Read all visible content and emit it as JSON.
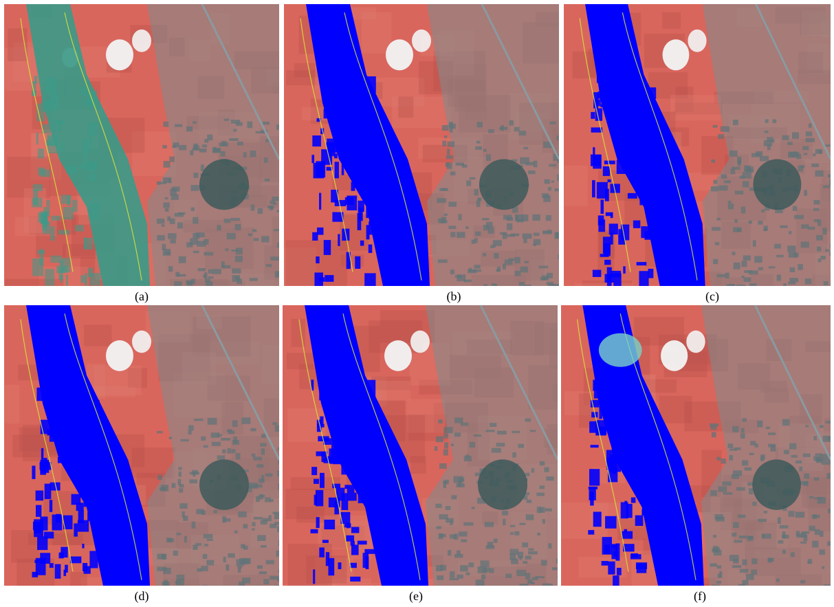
{
  "figure": {
    "panels": [
      {
        "id": "a",
        "label": "(a)",
        "water_fill": "#3a9a88",
        "water_opacity": 0.9,
        "outline": "#d7e43a",
        "overlay_note": ""
      },
      {
        "id": "b",
        "label": "(b)",
        "water_fill": "#0000ff",
        "water_opacity": 1,
        "outline": "#d7e43a",
        "overlay_note": ""
      },
      {
        "id": "c",
        "label": "(c)",
        "water_fill": "#0000ff",
        "water_opacity": 1,
        "outline": "#d7e43a",
        "overlay_note": ""
      },
      {
        "id": "d",
        "label": "(d)",
        "water_fill": "#0000ff",
        "water_opacity": 1,
        "outline": "#d7e43a",
        "overlay_note": ""
      },
      {
        "id": "e",
        "label": "(e)",
        "water_fill": "#0000ff",
        "water_opacity": 1,
        "outline": "#d7e43a",
        "overlay_note": ""
      },
      {
        "id": "f",
        "label": "(f)",
        "water_fill": "#0000ff",
        "water_opacity": 1,
        "outline": "#d7e43a",
        "overlay_note": ""
      }
    ],
    "colors": {
      "vegetation": "#d9665d",
      "vegetation_dark": "#b84f4b",
      "urban": "#7b8c8e",
      "forest_dark": "#3e5a5a",
      "cloud": "#f2f4f4",
      "water_blue": "#0000ff",
      "outline_yellow": "#d7e43a"
    }
  }
}
